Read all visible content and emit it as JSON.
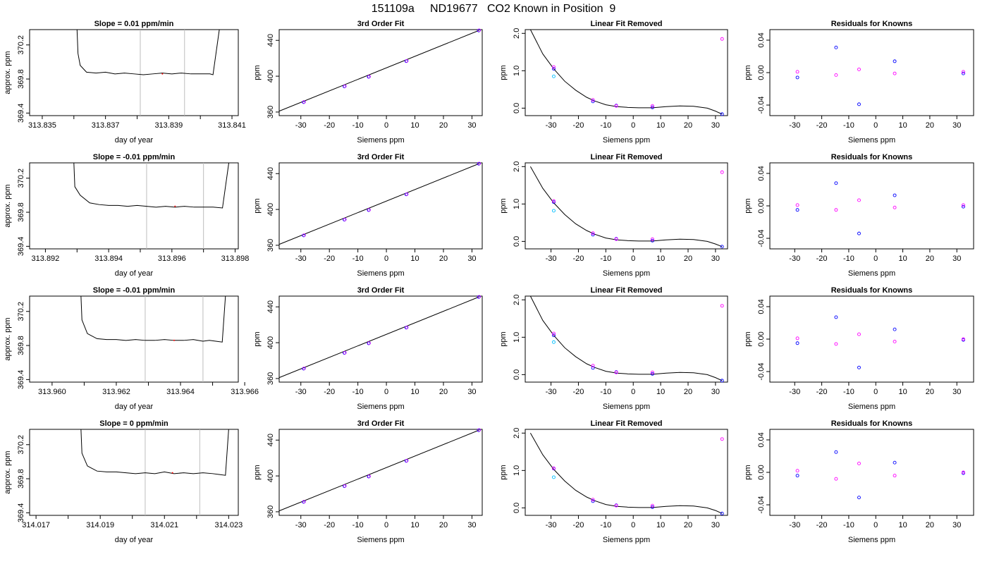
{
  "title": "151109a     ND19677   CO2 Known in Position  9",
  "colors": {
    "blue": "#0000ff",
    "magenta": "#ff00ff",
    "cyan": "#00bfff",
    "red": "#ff0000",
    "gray": "#bebebe"
  },
  "chart_data": [
    {
      "type": "line",
      "panel": "trace",
      "row": 0,
      "title": "Slope =  0.01  ppm/min",
      "xlabel": "day of year",
      "ylabel": "approx. ppm",
      "xlim": [
        313.8346,
        313.8412
      ],
      "ylim": [
        369.37,
        370.38
      ],
      "xticks": [
        "313.835",
        "313.837",
        "313.839",
        "313.841"
      ],
      "yticks": [
        "369.4",
        "369.8",
        "370.2"
      ],
      "x_start": 313.8346,
      "x_end": 313.8406,
      "vlines": [
        313.8381,
        313.8395
      ],
      "level": 369.86,
      "rise_start": 313.8361,
      "rise_end": 313.8406,
      "x": [
        313.8362,
        313.8364,
        313.8367,
        313.837,
        313.8373,
        313.8376,
        313.8379,
        313.8382,
        313.8385,
        313.8388,
        313.8391,
        313.8394,
        313.8397,
        313.84,
        313.8403,
        313.8404
      ],
      "y": [
        369.96,
        369.88,
        369.87,
        369.88,
        369.86,
        369.87,
        369.86,
        369.85,
        369.86,
        369.87,
        369.86,
        369.87,
        369.86,
        369.86,
        369.86,
        369.85
      ]
    },
    {
      "type": "scatter",
      "panel": "fit3",
      "row": 0,
      "title": "3rd Order Fit",
      "xlabel": "Siemens ppm",
      "ylabel": "ppm",
      "xlim": [
        -37.6,
        33.6
      ],
      "ylim": [
        356,
        452
      ],
      "xticks": [
        "-30",
        "-20",
        "-10",
        "0",
        "10",
        "20",
        "30"
      ],
      "yticks": [
        "360",
        "400",
        "440"
      ],
      "points_x": [
        -29,
        -14.7,
        -6.2,
        7,
        32.4
      ],
      "points_y": [
        371,
        388.5,
        399.3,
        416.8,
        451
      ],
      "line_x": [
        -37.6,
        32.4
      ],
      "line_y": [
        361,
        451
      ]
    },
    {
      "type": "scatter",
      "panel": "linrem",
      "row": 0,
      "title": "Linear Fit Removed",
      "xlabel": "Siemens ppm",
      "ylabel": "ppm",
      "xlim": [
        -39.4,
        34.4
      ],
      "ylim": [
        -0.2,
        2.1
      ],
      "xticks": [
        "-30",
        "-20",
        "-10",
        "0",
        "10",
        "20",
        "30"
      ],
      "yticks": [
        "0.0",
        "1.0",
        "2.0"
      ],
      "blue_x": [
        -29,
        -14.7,
        -6.2,
        7,
        32.4
      ],
      "blue_y": [
        1.05,
        0.18,
        0.07,
        0.02,
        -0.16
      ],
      "magenta_x": [
        -29,
        -14.7,
        -6.2,
        7,
        32.4
      ],
      "magenta_y": [
        1.1,
        0.22,
        0.06,
        0.06,
        1.85
      ],
      "cyan_x": [
        -29
      ],
      "cyan_y": [
        0.85
      ],
      "curve_x": [
        -37.5,
        -33,
        -29,
        -25,
        -21,
        -17,
        -14,
        -10,
        -6,
        -2,
        2,
        7,
        12,
        17,
        22,
        27,
        30,
        32.4
      ],
      "curve_y": [
        2.1,
        1.45,
        1.05,
        0.72,
        0.48,
        0.29,
        0.19,
        0.09,
        0.04,
        0.02,
        0.01,
        0.01,
        0.04,
        0.06,
        0.05,
        0,
        -0.08,
        -0.16
      ]
    },
    {
      "type": "scatter",
      "panel": "resid",
      "row": 0,
      "title": "Residuals for Knowns",
      "xlabel": "Siemens ppm",
      "ylabel": "ppm",
      "xlim": [
        -39.2,
        36.2
      ],
      "ylim": [
        -0.053,
        0.053
      ],
      "xticks": [
        "-30",
        "-20",
        "-10",
        "0",
        "10",
        "20",
        "30"
      ],
      "yticks": [
        "-0.04",
        "0.00",
        "0.04"
      ],
      "blue_x": [
        -29,
        -14.7,
        -6.2,
        7,
        32.4
      ],
      "blue_y": [
        -0.006,
        0.031,
        -0.039,
        0.014,
        -0.001
      ],
      "magenta_x": [
        -29,
        -14.7,
        -6.2,
        7,
        32.4
      ],
      "magenta_y": [
        0.001,
        -0.003,
        0.004,
        -0.001,
        0.001
      ]
    },
    {
      "type": "line",
      "panel": "trace",
      "row": 1,
      "title": "Slope =  -0.01  ppm/min",
      "xlabel": "day of year",
      "ylabel": "approx. ppm",
      "xlim": [
        313.8915,
        313.8981
      ],
      "ylim": [
        369.37,
        370.38
      ],
      "xticks": [
        "313.892",
        "313.894",
        "313.896",
        "313.898"
      ],
      "yticks": [
        "369.4",
        "369.8",
        "370.2"
      ],
      "x_start": 313.8915,
      "x_end": 313.8978,
      "vlines": [
        313.8952,
        313.897
      ],
      "level": 369.87,
      "rise_start": 313.8929,
      "rise_end": 313.8978,
      "x": [
        313.8931,
        313.8934,
        313.8937,
        313.894,
        313.8943,
        313.8946,
        313.8949,
        313.8952,
        313.8955,
        313.8958,
        313.8961,
        313.8964,
        313.8967,
        313.897,
        313.8973,
        313.8976
      ],
      "y": [
        370.0,
        369.91,
        369.89,
        369.88,
        369.88,
        369.87,
        369.88,
        369.87,
        369.86,
        369.87,
        369.86,
        369.87,
        369.86,
        369.86,
        369.86,
        369.85
      ]
    },
    {
      "type": "scatter",
      "panel": "fit3",
      "row": 1,
      "title": "3rd Order Fit",
      "xlabel": "Siemens ppm",
      "ylabel": "ppm",
      "xlim": [
        -37.6,
        33.6
      ],
      "ylim": [
        356,
        452
      ],
      "xticks": [
        "-30",
        "-20",
        "-10",
        "0",
        "10",
        "20",
        "30"
      ],
      "yticks": [
        "360",
        "400",
        "440"
      ],
      "points_x": [
        -29,
        -14.7,
        -6.2,
        7,
        32.4
      ],
      "points_y": [
        371,
        388.5,
        399.3,
        416.8,
        451
      ],
      "line_x": [
        -37.6,
        32.4
      ],
      "line_y": [
        361,
        451
      ]
    },
    {
      "type": "scatter",
      "panel": "linrem",
      "row": 1,
      "title": "Linear Fit Removed",
      "xlabel": "Siemens ppm",
      "ylabel": "ppm",
      "xlim": [
        -39.4,
        34.4
      ],
      "ylim": [
        -0.2,
        2.1
      ],
      "xticks": [
        "-30",
        "-20",
        "-10",
        "0",
        "10",
        "20",
        "30"
      ],
      "yticks": [
        "0.0",
        "1.0",
        "2.0"
      ],
      "blue_x": [
        -29,
        -14.7,
        -6.2,
        7,
        32.4
      ],
      "blue_y": [
        1.05,
        0.18,
        0.07,
        0.02,
        -0.14
      ],
      "magenta_x": [
        -29,
        -14.7,
        -6.2,
        7,
        32.4
      ],
      "magenta_y": [
        1.08,
        0.22,
        0.06,
        0.06,
        1.85
      ],
      "cyan_x": [
        -29
      ],
      "cyan_y": [
        0.82
      ],
      "curve_x": [
        -37.5,
        -33,
        -29,
        -25,
        -21,
        -17,
        -14,
        -10,
        -6,
        -2,
        2,
        7,
        12,
        17,
        22,
        27,
        30,
        32.4
      ],
      "curve_y": [
        2.0,
        1.42,
        1.03,
        0.72,
        0.47,
        0.29,
        0.19,
        0.09,
        0.04,
        0.02,
        0.01,
        0.01,
        0.04,
        0.06,
        0.05,
        0,
        -0.07,
        -0.14
      ]
    },
    {
      "type": "scatter",
      "panel": "resid",
      "row": 1,
      "title": "Residuals for Knowns",
      "xlabel": "Siemens ppm",
      "ylabel": "ppm",
      "xlim": [
        -39.2,
        36.2
      ],
      "ylim": [
        -0.053,
        0.053
      ],
      "xticks": [
        "-30",
        "-20",
        "-10",
        "0",
        "10",
        "20",
        "30"
      ],
      "yticks": [
        "-0.04",
        "0.00",
        "0.04"
      ],
      "blue_x": [
        -29,
        -14.7,
        -6.2,
        7,
        32.4
      ],
      "blue_y": [
        -0.005,
        0.028,
        -0.034,
        0.013,
        -0.001
      ],
      "magenta_x": [
        -29,
        -14.7,
        -6.2,
        7,
        32.4
      ],
      "magenta_y": [
        0.001,
        -0.005,
        0.007,
        -0.002,
        0.001
      ]
    },
    {
      "type": "line",
      "panel": "trace",
      "row": 2,
      "title": "Slope =  -0.01  ppm/min",
      "xlabel": "day of year",
      "ylabel": "approx. ppm",
      "xlim": [
        313.9593,
        313.9658
      ],
      "ylim": [
        369.37,
        370.38
      ],
      "xticks": [
        "313.960",
        "313.962",
        "313.964",
        "313.966"
      ],
      "yticks": [
        "369.4",
        "369.8",
        "370.2"
      ],
      "x_start": 313.9593,
      "x_end": 313.9654,
      "vlines": [
        313.9629,
        313.9647
      ],
      "level": 369.86,
      "rise_start": 313.9609,
      "rise_end": 313.9654,
      "x": [
        313.9611,
        313.9614,
        313.9617,
        313.962,
        313.9623,
        313.9626,
        313.9629,
        313.9632,
        313.9635,
        313.9638,
        313.9641,
        313.9644,
        313.9647,
        313.9649,
        313.9651,
        313.9653
      ],
      "y": [
        369.94,
        369.88,
        369.87,
        369.87,
        369.86,
        369.87,
        369.86,
        369.86,
        369.87,
        369.86,
        369.86,
        369.87,
        369.85,
        369.86,
        369.85,
        369.84
      ]
    },
    {
      "type": "scatter",
      "panel": "fit3",
      "row": 2,
      "title": "3rd Order Fit",
      "xlabel": "Siemens ppm",
      "ylabel": "ppm",
      "xlim": [
        -37.6,
        33.6
      ],
      "ylim": [
        356,
        452
      ],
      "xticks": [
        "-30",
        "-20",
        "-10",
        "0",
        "10",
        "20",
        "30"
      ],
      "yticks": [
        "360",
        "400",
        "440"
      ],
      "points_x": [
        -29,
        -14.7,
        -6.2,
        7,
        32.4
      ],
      "points_y": [
        371,
        388.5,
        399.3,
        416.8,
        451
      ],
      "line_x": [
        -37.6,
        32.4
      ],
      "line_y": [
        361,
        451
      ]
    },
    {
      "type": "scatter",
      "panel": "linrem",
      "row": 2,
      "title": "Linear Fit Removed",
      "xlabel": "Siemens ppm",
      "ylabel": "ppm",
      "xlim": [
        -39.4,
        34.4
      ],
      "ylim": [
        -0.2,
        2.1
      ],
      "xticks": [
        "-30",
        "-20",
        "-10",
        "0",
        "10",
        "20",
        "30"
      ],
      "yticks": [
        "0.0",
        "1.0",
        "2.0"
      ],
      "blue_x": [
        -29,
        -14.7,
        -6.2,
        7,
        32.4
      ],
      "blue_y": [
        1.05,
        0.18,
        0.07,
        0.02,
        -0.16
      ],
      "magenta_x": [
        -29,
        -14.7,
        -6.2,
        7,
        32.4
      ],
      "magenta_y": [
        1.1,
        0.24,
        0.06,
        0.06,
        1.84
      ],
      "cyan_x": [
        -29
      ],
      "cyan_y": [
        0.87
      ],
      "curve_x": [
        -37.5,
        -33,
        -29,
        -25,
        -21,
        -17,
        -14,
        -10,
        -6,
        -2,
        2,
        7,
        12,
        17,
        22,
        27,
        30,
        32.4
      ],
      "curve_y": [
        2.1,
        1.45,
        1.05,
        0.72,
        0.48,
        0.29,
        0.19,
        0.09,
        0.04,
        0.02,
        0.01,
        0.01,
        0.04,
        0.06,
        0.05,
        0,
        -0.08,
        -0.16
      ]
    },
    {
      "type": "scatter",
      "panel": "resid",
      "row": 2,
      "title": "Residuals for Knowns",
      "xlabel": "Siemens ppm",
      "ylabel": "ppm",
      "xlim": [
        -39.2,
        36.2
      ],
      "ylim": [
        -0.053,
        0.053
      ],
      "xticks": [
        "-30",
        "-20",
        "-10",
        "0",
        "10",
        "20",
        "30"
      ],
      "yticks": [
        "-0.04",
        "0.00",
        "0.04"
      ],
      "blue_x": [
        -29,
        -14.7,
        -6.2,
        7,
        32.4
      ],
      "blue_y": [
        -0.005,
        0.027,
        -0.035,
        0.012,
        -0.001
      ],
      "magenta_x": [
        -29,
        -14.7,
        -6.2,
        7,
        32.4
      ],
      "magenta_y": [
        0.001,
        -0.006,
        0.006,
        -0.003,
        0.0
      ]
    },
    {
      "type": "line",
      "panel": "trace",
      "row": 3,
      "title": "Slope =  0  ppm/min",
      "xlabel": "day of year",
      "ylabel": "approx. ppm",
      "xlim": [
        314.0168,
        314.0233
      ],
      "ylim": [
        369.37,
        370.38
      ],
      "xticks": [
        "314.017",
        "314.019",
        "314.021",
        "314.023"
      ],
      "yticks": [
        "369.4",
        "369.8",
        "370.2"
      ],
      "x_start": 314.0168,
      "x_end": 314.023,
      "vlines": [
        314.0204,
        314.0221
      ],
      "level": 369.87,
      "rise_start": 314.0184,
      "rise_end": 314.023,
      "x": [
        314.0186,
        314.0189,
        314.0192,
        314.0195,
        314.0198,
        314.0201,
        314.0204,
        314.0207,
        314.021,
        314.0213,
        314.0216,
        314.0219,
        314.0222,
        314.0225,
        314.0227,
        314.0229
      ],
      "y": [
        369.95,
        369.89,
        369.88,
        369.88,
        369.87,
        369.86,
        369.87,
        369.86,
        369.88,
        369.86,
        369.87,
        369.86,
        369.87,
        369.86,
        369.85,
        369.84
      ]
    },
    {
      "type": "scatter",
      "panel": "fit3",
      "row": 3,
      "title": "3rd Order Fit",
      "xlabel": "Siemens ppm",
      "ylabel": "ppm",
      "xlim": [
        -37.6,
        33.6
      ],
      "ylim": [
        356,
        452
      ],
      "xticks": [
        "-30",
        "-20",
        "-10",
        "0",
        "10",
        "20",
        "30"
      ],
      "yticks": [
        "360",
        "400",
        "440"
      ],
      "points_x": [
        -29,
        -14.7,
        -6.2,
        7,
        32.4
      ],
      "points_y": [
        371,
        388.5,
        399.3,
        416.8,
        451
      ],
      "line_x": [
        -37.6,
        32.4
      ],
      "line_y": [
        361,
        451
      ]
    },
    {
      "type": "scatter",
      "panel": "linrem",
      "row": 3,
      "title": "Linear Fit Removed",
      "xlabel": "Siemens ppm",
      "ylabel": "ppm",
      "xlim": [
        -39.4,
        34.4
      ],
      "ylim": [
        -0.2,
        2.1
      ],
      "xticks": [
        "-30",
        "-20",
        "-10",
        "0",
        "10",
        "20",
        "30"
      ],
      "yticks": [
        "0.0",
        "1.0",
        "2.0"
      ],
      "blue_x": [
        -29,
        -14.7,
        -6.2,
        7,
        32.4
      ],
      "blue_y": [
        1.05,
        0.18,
        0.07,
        0.02,
        -0.15
      ],
      "magenta_x": [
        -29,
        -14.7,
        -6.2,
        7,
        32.4
      ],
      "magenta_y": [
        1.06,
        0.22,
        0.06,
        0.06,
        1.84
      ],
      "cyan_x": [
        -29
      ],
      "cyan_y": [
        0.82
      ],
      "curve_x": [
        -37.5,
        -33,
        -29,
        -25,
        -21,
        -17,
        -14,
        -10,
        -6,
        -2,
        2,
        7,
        12,
        17,
        22,
        27,
        30,
        32.4
      ],
      "curve_y": [
        2.0,
        1.42,
        1.03,
        0.72,
        0.47,
        0.29,
        0.19,
        0.09,
        0.04,
        0.02,
        0.01,
        0.01,
        0.04,
        0.06,
        0.05,
        0,
        -0.07,
        -0.15
      ]
    },
    {
      "type": "scatter",
      "panel": "resid",
      "row": 3,
      "title": "Residuals for Knowns",
      "xlabel": "Siemens ppm",
      "ylabel": "ppm",
      "xlim": [
        -39.2,
        36.2
      ],
      "ylim": [
        -0.053,
        0.053
      ],
      "xticks": [
        "-30",
        "-20",
        "-10",
        "0",
        "10",
        "20",
        "30"
      ],
      "yticks": [
        "-0.04",
        "0.00",
        "0.04"
      ],
      "blue_x": [
        -29,
        -14.7,
        -6.2,
        7,
        32.4
      ],
      "blue_y": [
        -0.004,
        0.025,
        -0.031,
        0.012,
        -0.001
      ],
      "magenta_x": [
        -29,
        -14.7,
        -6.2,
        7,
        32.4
      ],
      "magenta_y": [
        0.002,
        -0.008,
        0.011,
        -0.004,
        0.0
      ]
    }
  ]
}
